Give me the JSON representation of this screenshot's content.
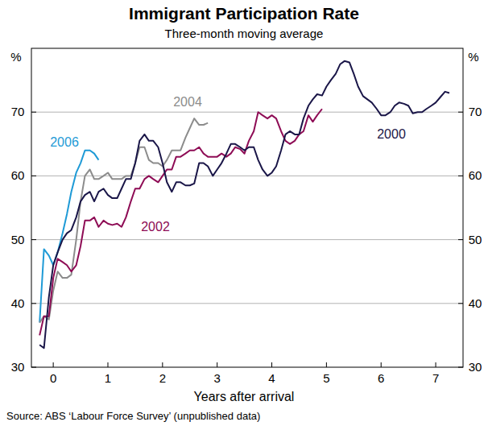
{
  "chart_data": {
    "type": "line",
    "title": "Immigrant Participation Rate",
    "subtitle": "Three-month moving average",
    "x_label": "Years after arrival",
    "y_label": "%",
    "y2_label": "%",
    "source": "Source: ABS ‘Labour Force Survey’ (unpublished data)",
    "xlim": [
      -0.4,
      7.5
    ],
    "xticks": [
      0,
      1,
      2,
      3,
      4,
      5,
      6,
      7
    ],
    "ylim": [
      30,
      80
    ],
    "yticks": [
      30,
      40,
      50,
      60,
      70
    ],
    "y2lim": [
      30,
      80
    ],
    "y2ticks": [
      30,
      40,
      50,
      60,
      70
    ],
    "grid": true,
    "x": [
      -0.25,
      -0.17,
      -0.08,
      0,
      0.08,
      0.17,
      0.25,
      0.33,
      0.42,
      0.5,
      0.58,
      0.67,
      0.75,
      0.83,
      0.92,
      1,
      1.08,
      1.17,
      1.25,
      1.33,
      1.42,
      1.5,
      1.58,
      1.67,
      1.75,
      1.83,
      1.92,
      2,
      2.08,
      2.17,
      2.25,
      2.33,
      2.42,
      2.5,
      2.58,
      2.67,
      2.75,
      2.83,
      2.92,
      3,
      3.08,
      3.17,
      3.25,
      3.33,
      3.42,
      3.5,
      3.58,
      3.67,
      3.75,
      3.83,
      3.92,
      4,
      4.08,
      4.17,
      4.25,
      4.33,
      4.42,
      4.5,
      4.58,
      4.67,
      4.75,
      4.83,
      4.92,
      5,
      5.08,
      5.17,
      5.25,
      5.33,
      5.42,
      5.5,
      5.58,
      5.67,
      5.75,
      5.83,
      5.92,
      6,
      6.08,
      6.17,
      6.25,
      6.33,
      6.42,
      6.5,
      6.58,
      6.67,
      6.75,
      6.83,
      6.92,
      7,
      7.08,
      7.17,
      7.25
    ],
    "series": [
      {
        "name": "2006",
        "color": "#1e9ad6",
        "values": [
          37,
          48.5,
          47.5,
          46,
          48,
          51,
          54,
          57.5,
          60.5,
          62,
          64,
          64,
          63.5,
          62.5,
          null,
          null,
          null,
          null,
          null,
          null,
          null,
          null,
          null,
          null,
          null,
          null,
          null,
          null,
          null,
          null,
          null,
          null,
          null,
          null,
          null,
          null,
          null,
          null,
          null,
          null,
          null,
          null,
          null,
          null,
          null,
          null,
          null,
          null,
          null,
          null,
          null,
          null,
          null,
          null,
          null,
          null,
          null,
          null,
          null,
          null,
          null,
          null,
          null,
          null,
          null,
          null,
          null,
          null,
          null,
          null,
          null,
          null,
          null,
          null,
          null,
          null,
          null,
          null,
          null,
          null,
          null,
          null,
          null,
          null,
          null,
          null,
          null,
          null,
          null,
          null,
          null
        ]
      },
      {
        "name": "2004",
        "color": "#8c8c8c",
        "values": [
          37,
          38,
          37.5,
          42,
          45,
          44,
          44,
          44.5,
          50,
          56,
          60,
          61,
          59.5,
          59.5,
          60,
          60.5,
          59.5,
          59.5,
          59.5,
          60,
          60,
          62,
          64.5,
          64.5,
          62.5,
          62,
          62,
          61.5,
          62.5,
          64,
          64,
          64,
          66,
          67.5,
          69,
          68,
          68,
          68.3,
          null,
          null,
          null,
          null,
          null,
          null,
          null,
          null,
          null,
          null,
          null,
          null,
          null,
          null,
          null,
          null,
          null,
          null,
          null,
          null,
          null,
          null,
          null,
          null,
          null,
          null,
          null,
          null,
          null,
          null,
          null,
          null,
          null,
          null,
          null,
          null,
          null,
          null,
          null,
          null,
          null,
          null,
          null,
          null,
          null,
          null,
          null,
          null,
          null,
          null,
          null,
          null,
          null
        ]
      },
      {
        "name": "2002",
        "color": "#8e0c55",
        "values": [
          35,
          38,
          38,
          44,
          47,
          46.5,
          46,
          45,
          46,
          49,
          53,
          53,
          53.5,
          52,
          53,
          52.5,
          52.3,
          52.5,
          52,
          53.5,
          56,
          58,
          58,
          59.5,
          60,
          59.5,
          59,
          60,
          61,
          61,
          63,
          63,
          63.5,
          64,
          64,
          64.5,
          63.5,
          63,
          63,
          63,
          63.5,
          63,
          63.5,
          64.5,
          64.2,
          63.5,
          65.5,
          67,
          70,
          69.5,
          69,
          69.5,
          69,
          67,
          65.5,
          65,
          65.5,
          66.5,
          67,
          69.5,
          68.5,
          69.5,
          70.5,
          null,
          null,
          null,
          null,
          null,
          null,
          null,
          null,
          null,
          null,
          null,
          null,
          null,
          null,
          null,
          null,
          null,
          null,
          null,
          null,
          null,
          null,
          null,
          null,
          null,
          null,
          null,
          null
        ]
      },
      {
        "name": "2000",
        "color": "#1a1648",
        "values": [
          33.5,
          33,
          41,
          46,
          48,
          50,
          51,
          51.5,
          53.5,
          56,
          57,
          57.5,
          56,
          57.5,
          58,
          57,
          56.5,
          56.5,
          58,
          59.5,
          59.5,
          62,
          65.5,
          66.5,
          65.5,
          65.5,
          64.5,
          62,
          59,
          57.5,
          59,
          59,
          58.5,
          58.5,
          58.8,
          62,
          62,
          61.5,
          60,
          61,
          62,
          63.5,
          65,
          65,
          64.5,
          64,
          64.5,
          64.5,
          62.5,
          61,
          60,
          60.5,
          61.5,
          64,
          66.5,
          67,
          66.5,
          66.5,
          69,
          71,
          72,
          72.8,
          72.6,
          74,
          75,
          76,
          77.5,
          78,
          77.8,
          76,
          74,
          72.5,
          72,
          71.5,
          70.5,
          69.5,
          69.5,
          70,
          71,
          71.5,
          71.3,
          71,
          69.8,
          70,
          70,
          70.5,
          71,
          71.5,
          72.3,
          73.2,
          73
        ]
      }
    ]
  }
}
